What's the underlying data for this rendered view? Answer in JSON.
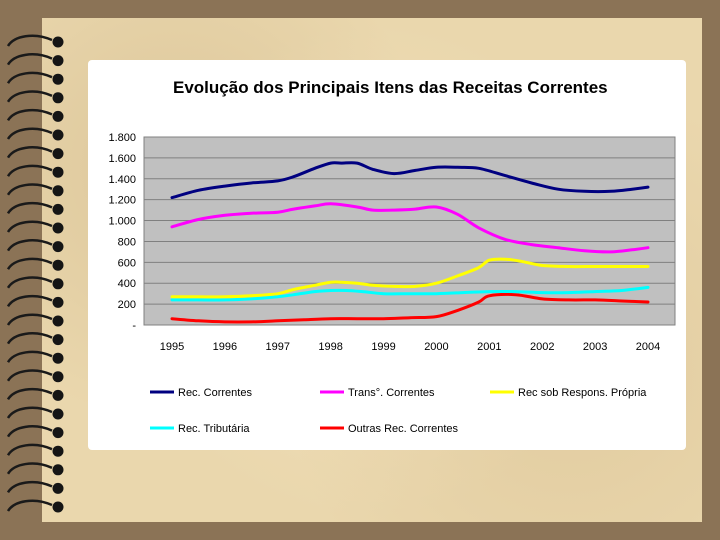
{
  "chart_data": {
    "type": "line",
    "title": "Evolução dos Principais Itens das Receitas Correntes",
    "xlabel": "",
    "ylabel": "",
    "ylim": [
      0,
      1800
    ],
    "yticks": [
      {
        "value": 0,
        "label": "-"
      },
      {
        "value": 200,
        "label": "200"
      },
      {
        "value": 400,
        "label": "400"
      },
      {
        "value": 600,
        "label": "600"
      },
      {
        "value": 800,
        "label": "800"
      },
      {
        "value": 1000,
        "label": "1.000"
      },
      {
        "value": 1200,
        "label": "1.200"
      },
      {
        "value": 1400,
        "label": "1.400"
      },
      {
        "value": 1600,
        "label": "1.600"
      },
      {
        "value": 1800,
        "label": "1.800"
      }
    ],
    "grid": true,
    "plot_background": "#c0c0c0",
    "categories": [
      "1995",
      "1996",
      "1997",
      "1998",
      "1999",
      "2000",
      "2001",
      "2002",
      "2003",
      "2004"
    ],
    "series": [
      {
        "name": "Rec. Correntes",
        "color": "#000080",
        "x": [
          1995,
          1995.5,
          1996,
          1996.5,
          1997,
          1997.3,
          1997.7,
          1998,
          1998.2,
          1998.5,
          1998.8,
          1999.2,
          1999.6,
          2000,
          2000.4,
          2000.8,
          2001.3,
          2001.8,
          2002.3,
          2002.8,
          2003.3,
          2003.7,
          2004
        ],
        "values": [
          1220,
          1290,
          1330,
          1360,
          1380,
          1420,
          1500,
          1550,
          1550,
          1550,
          1490,
          1450,
          1480,
          1510,
          1510,
          1500,
          1430,
          1360,
          1300,
          1280,
          1280,
          1300,
          1320
        ]
      },
      {
        "name": "Trans°. Correntes",
        "color": "#ff00ff",
        "x": [
          1995,
          1995.5,
          1996,
          1996.5,
          1997,
          1997.3,
          1997.7,
          1998,
          1998.5,
          1998.8,
          1999.2,
          1999.6,
          2000,
          2000.4,
          2000.8,
          2001.3,
          2001.8,
          2002.3,
          2002.8,
          2003.3,
          2003.7,
          2004
        ],
        "values": [
          940,
          1010,
          1050,
          1070,
          1080,
          1110,
          1140,
          1160,
          1130,
          1100,
          1100,
          1110,
          1130,
          1060,
          930,
          820,
          770,
          740,
          710,
          700,
          720,
          740
        ]
      },
      {
        "name": "Rec sob Respons. Própria",
        "color": "#ffff00",
        "x": [
          1995,
          1995.5,
          1996,
          1996.5,
          1997,
          1997.3,
          1997.7,
          1998,
          1998.2,
          1998.5,
          1998.8,
          1999.2,
          1999.6,
          2000,
          2000.4,
          2000.8,
          2001,
          2001.3,
          2001.6,
          2002,
          2002.5,
          2003,
          2003.5,
          2004
        ],
        "values": [
          270,
          270,
          270,
          280,
          300,
          340,
          380,
          410,
          410,
          400,
          380,
          370,
          370,
          400,
          470,
          550,
          620,
          630,
          610,
          570,
          560,
          560,
          560,
          560
        ]
      },
      {
        "name": "Rec. Tributária",
        "color": "#00ffff",
        "x": [
          1995,
          1995.5,
          1996,
          1996.5,
          1997,
          1997.3,
          1997.7,
          1998,
          1998.3,
          1998.6,
          1999,
          1999.5,
          2000,
          2000.5,
          2001,
          2001.5,
          2002,
          2002.5,
          2003,
          2003.5,
          2004
        ],
        "values": [
          240,
          240,
          240,
          250,
          270,
          290,
          320,
          330,
          330,
          320,
          300,
          300,
          300,
          310,
          320,
          320,
          310,
          310,
          320,
          330,
          360
        ]
      },
      {
        "name": "Outras Rec. Correntes",
        "color": "#ff0000",
        "x": [
          1995,
          1995.5,
          1996,
          1996.5,
          1997,
          1997.5,
          1998,
          1998.5,
          1999,
          1999.5,
          2000,
          2000.4,
          2000.8,
          2001,
          2001.5,
          2002,
          2002.5,
          2003,
          2003.5,
          2004
        ],
        "values": [
          60,
          40,
          30,
          30,
          40,
          50,
          60,
          60,
          60,
          70,
          80,
          140,
          220,
          280,
          290,
          250,
          240,
          240,
          230,
          220
        ]
      }
    ],
    "legend_position": "bottom"
  }
}
